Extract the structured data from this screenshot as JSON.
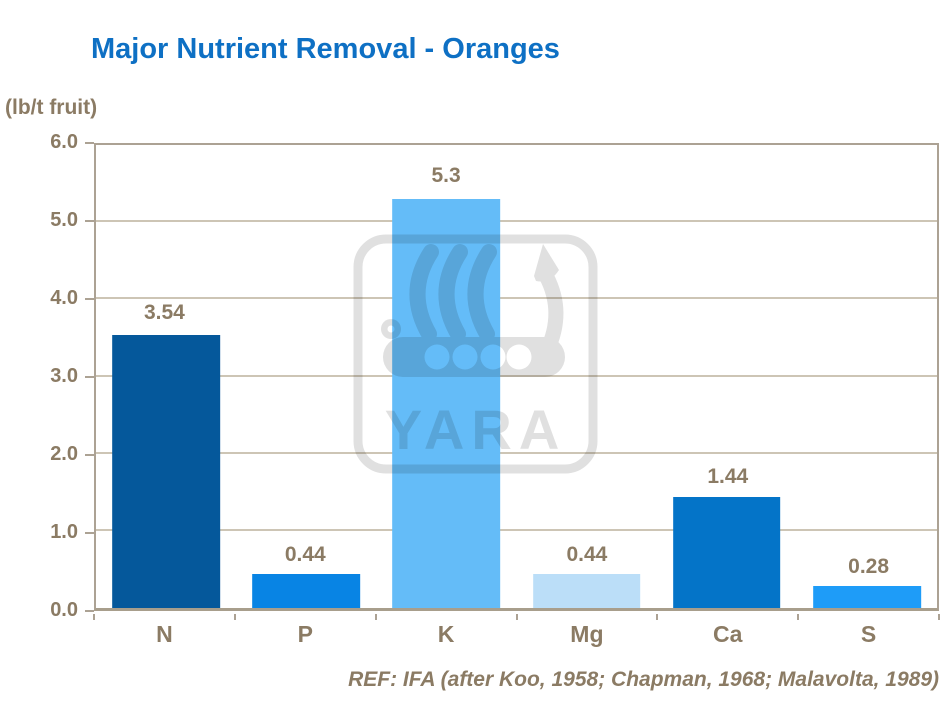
{
  "chart_data": {
    "type": "bar",
    "title": "Major Nutrient Removal - Oranges",
    "unit_label": "(lb/t fruit)",
    "categories": [
      "N",
      "P",
      "K",
      "Mg",
      "Ca",
      "S"
    ],
    "values": [
      3.54,
      0.44,
      5.3,
      0.44,
      1.44,
      0.28
    ],
    "value_labels": [
      "3.54",
      "0.44",
      "5.3",
      "0.44",
      "1.44",
      "0.28"
    ],
    "bar_colors": [
      "#05589B",
      "#0884E4",
      "#64BCF8",
      "#BBDEF8",
      "#0474C8",
      "#1E9CF8"
    ],
    "ylim": [
      0,
      6
    ],
    "yticks": [
      0,
      1,
      2,
      3,
      4,
      5,
      6
    ],
    "ytick_labels": [
      "0.0",
      "1.0",
      "2.0",
      "3.0",
      "4.0",
      "5.0",
      "6.0"
    ],
    "grid": true,
    "legend": null,
    "reference": "REF: IFA (after Koo, 1958; Chapman, 1968; Malavolta, 1989)",
    "watermark_text": "YARA"
  },
  "colors": {
    "title_blue": "#0E70C4",
    "label_brown": "#8B7B64",
    "axis_tan": "#ACA294",
    "gridline_tan": "#CDC5B5",
    "watermark_gray": "#E0E0E0"
  }
}
